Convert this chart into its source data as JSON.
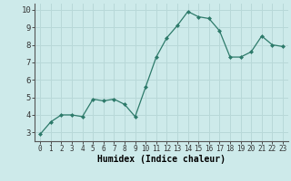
{
  "x": [
    0,
    1,
    2,
    3,
    4,
    5,
    6,
    7,
    8,
    9,
    10,
    11,
    12,
    13,
    14,
    15,
    16,
    17,
    18,
    19,
    20,
    21,
    22,
    23
  ],
  "y": [
    2.9,
    3.6,
    4.0,
    4.0,
    3.9,
    4.9,
    4.8,
    4.9,
    4.6,
    3.9,
    5.6,
    7.3,
    8.4,
    9.1,
    9.9,
    9.6,
    9.5,
    8.8,
    7.3,
    7.3,
    7.6,
    8.5,
    8.0,
    7.9
  ],
  "xlabel": "Humidex (Indice chaleur)",
  "bg_color": "#cdeaea",
  "grid_color": "#b8d8d8",
  "line_color": "#2d7a6a",
  "marker_color": "#2d7a6a",
  "ylim": [
    2.5,
    10.35
  ],
  "xlim": [
    -0.5,
    23.5
  ],
  "yticks": [
    3,
    4,
    5,
    6,
    7,
    8,
    9,
    10
  ],
  "xtick_labels": [
    "0",
    "1",
    "2",
    "3",
    "4",
    "5",
    "6",
    "7",
    "8",
    "9",
    "10",
    "11",
    "12",
    "13",
    "14",
    "15",
    "16",
    "17",
    "18",
    "19",
    "20",
    "21",
    "22",
    "23"
  ],
  "tick_fontsize": 5.5,
  "xlabel_fontsize": 7.0,
  "ytick_fontsize": 6.5
}
